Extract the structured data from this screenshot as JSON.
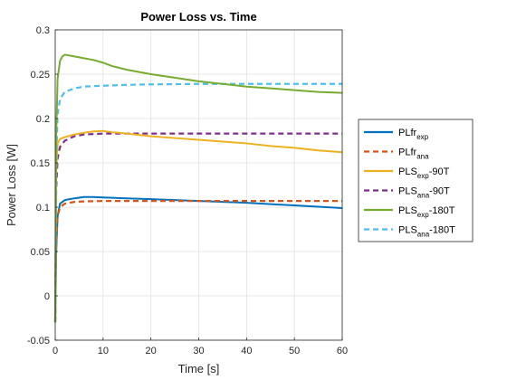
{
  "chart_data": {
    "type": "line",
    "title": "Power Loss vs. Time",
    "xlabel": "Time [s]",
    "ylabel": "Power Loss [W]",
    "xlim": [
      0,
      60
    ],
    "ylim": [
      -0.05,
      0.3
    ],
    "xticks": [
      "0",
      "10",
      "20",
      "30",
      "40",
      "50",
      "60"
    ],
    "yticks": [
      "-0.05",
      "0",
      "0.05",
      "0.1",
      "0.15",
      "0.2",
      "0.25",
      "0.3"
    ],
    "grid": true,
    "legend_position": "right",
    "series": [
      {
        "name": "PLfr_exp",
        "legend_main": "PLfr",
        "legend_sub": "exp",
        "legend_suffix": "",
        "color": "#0072BD",
        "style": "solid",
        "points": [
          [
            0,
            -0.03
          ],
          [
            0.2,
            0.05
          ],
          [
            0.5,
            0.09
          ],
          [
            1,
            0.104
          ],
          [
            2,
            0.108
          ],
          [
            4,
            0.11
          ],
          [
            6,
            0.1115
          ],
          [
            8,
            0.1115
          ],
          [
            10,
            0.111
          ],
          [
            15,
            0.11
          ],
          [
            20,
            0.109
          ],
          [
            25,
            0.108
          ],
          [
            30,
            0.107
          ],
          [
            35,
            0.106
          ],
          [
            40,
            0.105
          ],
          [
            45,
            0.1035
          ],
          [
            50,
            0.102
          ],
          [
            55,
            0.1005
          ],
          [
            60,
            0.099
          ]
        ]
      },
      {
        "name": "PLfr_ana",
        "legend_main": "PLfr",
        "legend_sub": "ana",
        "legend_suffix": "",
        "color": "#D95319",
        "style": "dashed",
        "points": [
          [
            0,
            -0.03
          ],
          [
            0.2,
            0.06
          ],
          [
            0.5,
            0.09
          ],
          [
            1,
            0.1
          ],
          [
            2,
            0.104
          ],
          [
            4,
            0.106
          ],
          [
            6,
            0.1065
          ],
          [
            10,
            0.107
          ],
          [
            20,
            0.107
          ],
          [
            30,
            0.107
          ],
          [
            40,
            0.107
          ],
          [
            50,
            0.107
          ],
          [
            60,
            0.107
          ]
        ]
      },
      {
        "name": "PLS_ana-90T",
        "legend_main": "PLS",
        "legend_sub": "ana",
        "legend_suffix": "-90T",
        "color": "#7E2F8E",
        "style": "dashed",
        "points": [
          [
            0,
            -0.03
          ],
          [
            0.2,
            0.12
          ],
          [
            0.5,
            0.155
          ],
          [
            1,
            0.168
          ],
          [
            2,
            0.175
          ],
          [
            4,
            0.18
          ],
          [
            6,
            0.182
          ],
          [
            8,
            0.1825
          ],
          [
            10,
            0.183
          ],
          [
            20,
            0.183
          ],
          [
            30,
            0.183
          ],
          [
            40,
            0.183
          ],
          [
            50,
            0.183
          ],
          [
            60,
            0.183
          ]
        ]
      },
      {
        "name": "PLS_exp-90T",
        "legend_main": "PLS",
        "legend_sub": "exp",
        "legend_suffix": "-90T",
        "color": "#EDB120",
        "style": "solid",
        "points": [
          [
            0,
            -0.03
          ],
          [
            0.2,
            0.14
          ],
          [
            0.5,
            0.172
          ],
          [
            1,
            0.177
          ],
          [
            2,
            0.179
          ],
          [
            4,
            0.182
          ],
          [
            6,
            0.184
          ],
          [
            8,
            0.1855
          ],
          [
            10,
            0.186
          ],
          [
            12,
            0.1845
          ],
          [
            15,
            0.183
          ],
          [
            20,
            0.18
          ],
          [
            25,
            0.178
          ],
          [
            30,
            0.176
          ],
          [
            35,
            0.174
          ],
          [
            40,
            0.172
          ],
          [
            45,
            0.169
          ],
          [
            50,
            0.167
          ],
          [
            55,
            0.164
          ],
          [
            60,
            0.162
          ]
        ]
      },
      {
        "name": "PLS_ana-180T",
        "legend_main": "PLS",
        "legend_sub": "ana",
        "legend_suffix": "-180T",
        "color": "#4DBEEE",
        "style": "dashed",
        "points": [
          [
            0,
            -0.03
          ],
          [
            0.2,
            0.15
          ],
          [
            0.5,
            0.205
          ],
          [
            1,
            0.222
          ],
          [
            2,
            0.23
          ],
          [
            4,
            0.234
          ],
          [
            6,
            0.236
          ],
          [
            10,
            0.237
          ],
          [
            15,
            0.238
          ],
          [
            20,
            0.2385
          ],
          [
            30,
            0.239
          ],
          [
            40,
            0.239
          ],
          [
            50,
            0.239
          ],
          [
            60,
            0.239
          ]
        ]
      },
      {
        "name": "PLS_exp-180T",
        "legend_main": "PLS",
        "legend_sub": "exp",
        "legend_suffix": "-180T",
        "color": "#77AC30",
        "style": "solid",
        "points": [
          [
            0,
            -0.03
          ],
          [
            0.2,
            0.18
          ],
          [
            0.5,
            0.245
          ],
          [
            1,
            0.265
          ],
          [
            1.5,
            0.27
          ],
          [
            2,
            0.272
          ],
          [
            3,
            0.271
          ],
          [
            5,
            0.269
          ],
          [
            8,
            0.266
          ],
          [
            10,
            0.263
          ],
          [
            12,
            0.259
          ],
          [
            15,
            0.255
          ],
          [
            20,
            0.25
          ],
          [
            25,
            0.246
          ],
          [
            30,
            0.242
          ],
          [
            35,
            0.239
          ],
          [
            40,
            0.236
          ],
          [
            45,
            0.234
          ],
          [
            50,
            0.232
          ],
          [
            55,
            0.23
          ],
          [
            60,
            0.229
          ]
        ]
      }
    ],
    "legend_order": [
      0,
      1,
      3,
      2,
      5,
      4
    ]
  }
}
